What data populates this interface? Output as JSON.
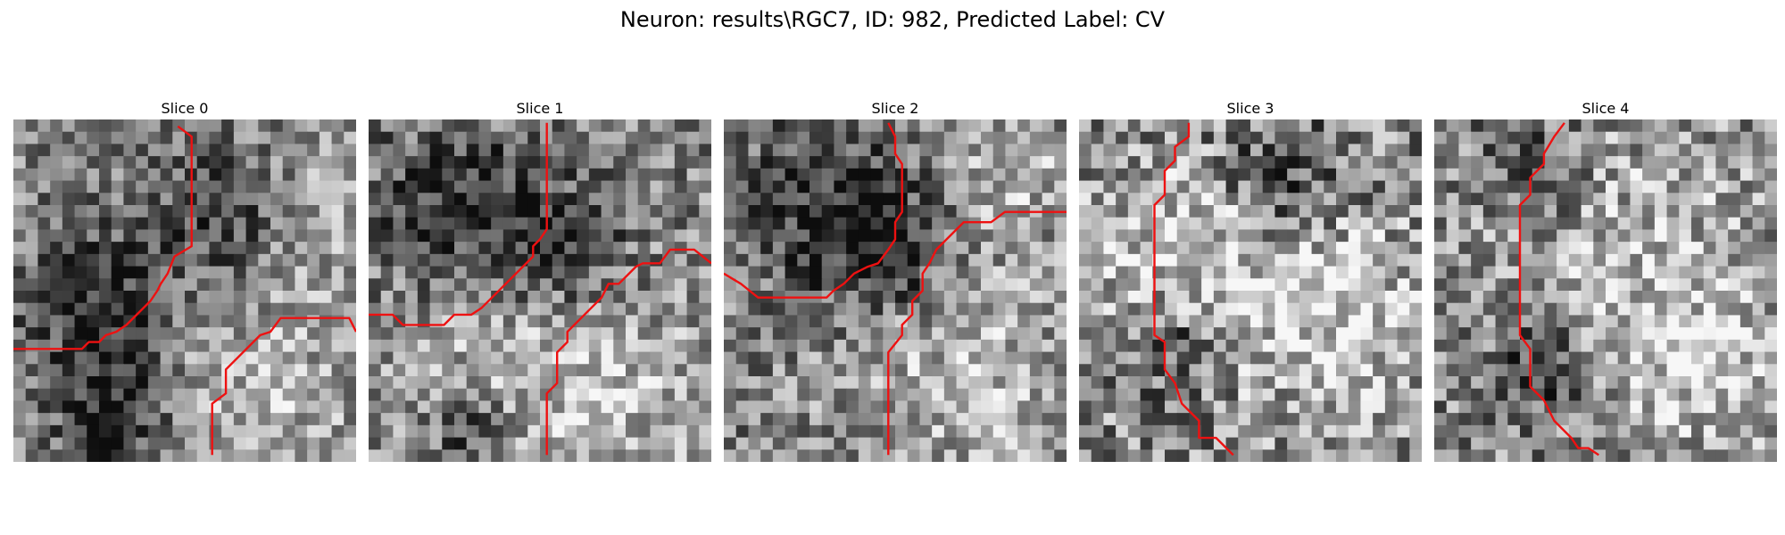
{
  "figure": {
    "title": "Neuron: results\\RGC7, ID: 982, Predicted Label: CV",
    "line_color": "#ee1111"
  },
  "panels": [
    {
      "title": "Slice 0",
      "grid_size": 28,
      "contrast": 0.55,
      "bright_blobs": [
        [
          0.72,
          0.8,
          0.22
        ],
        [
          0.82,
          0.28,
          0.15
        ]
      ],
      "dark_blobs": [
        [
          0.25,
          0.55,
          0.15
        ],
        [
          0.3,
          0.88,
          0.12
        ],
        [
          0.65,
          0.28,
          0.14
        ]
      ],
      "contours": [
        [
          [
            0.48,
            0.02
          ],
          [
            0.52,
            0.05
          ],
          [
            0.52,
            0.37
          ],
          [
            0.47,
            0.4
          ],
          [
            0.45,
            0.45
          ],
          [
            0.43,
            0.48
          ],
          [
            0.42,
            0.5
          ],
          [
            0.4,
            0.53
          ],
          [
            0.37,
            0.56
          ],
          [
            0.33,
            0.6
          ],
          [
            0.3,
            0.62
          ],
          [
            0.27,
            0.63
          ],
          [
            0.25,
            0.65
          ],
          [
            0.22,
            0.65
          ],
          [
            0.2,
            0.67
          ],
          [
            0.0,
            0.67
          ]
        ],
        [
          [
            0.58,
            0.98
          ],
          [
            0.58,
            0.83
          ],
          [
            0.62,
            0.8
          ],
          [
            0.62,
            0.73
          ],
          [
            0.65,
            0.7
          ],
          [
            0.68,
            0.67
          ],
          [
            0.72,
            0.63
          ],
          [
            0.75,
            0.62
          ],
          [
            0.78,
            0.58
          ],
          [
            0.98,
            0.58
          ],
          [
            1.0,
            0.62
          ]
        ]
      ]
    },
    {
      "title": "Slice 1",
      "grid_size": 28,
      "contrast": 0.6,
      "bright_blobs": [
        [
          0.72,
          0.82,
          0.22
        ],
        [
          0.3,
          0.78,
          0.18
        ]
      ],
      "dark_blobs": [
        [
          0.55,
          0.35,
          0.12
        ],
        [
          0.25,
          0.25,
          0.15
        ],
        [
          0.3,
          0.9,
          0.1
        ]
      ],
      "contours": [
        [
          [
            0.52,
            0.01
          ],
          [
            0.52,
            0.32
          ],
          [
            0.5,
            0.35
          ],
          [
            0.48,
            0.37
          ],
          [
            0.48,
            0.4
          ],
          [
            0.45,
            0.43
          ],
          [
            0.4,
            0.48
          ],
          [
            0.33,
            0.55
          ],
          [
            0.3,
            0.57
          ],
          [
            0.25,
            0.57
          ],
          [
            0.22,
            0.6
          ],
          [
            0.1,
            0.6
          ],
          [
            0.07,
            0.57
          ],
          [
            0.0,
            0.57
          ]
        ],
        [
          [
            0.52,
            0.98
          ],
          [
            0.52,
            0.8
          ],
          [
            0.55,
            0.77
          ],
          [
            0.55,
            0.68
          ],
          [
            0.58,
            0.65
          ],
          [
            0.58,
            0.62
          ],
          [
            0.62,
            0.58
          ],
          [
            0.65,
            0.55
          ],
          [
            0.68,
            0.52
          ],
          [
            0.7,
            0.48
          ],
          [
            0.73,
            0.48
          ],
          [
            0.78,
            0.43
          ],
          [
            0.8,
            0.42
          ],
          [
            0.85,
            0.42
          ],
          [
            0.88,
            0.38
          ],
          [
            0.95,
            0.38
          ],
          [
            1.0,
            0.42
          ]
        ]
      ]
    },
    {
      "title": "Slice 2",
      "grid_size": 28,
      "contrast": 0.6,
      "bright_blobs": [
        [
          0.7,
          0.75,
          0.25
        ],
        [
          0.85,
          0.15,
          0.12
        ]
      ],
      "dark_blobs": [
        [
          0.3,
          0.25,
          0.18
        ],
        [
          0.48,
          0.4,
          0.1
        ]
      ],
      "contours": [
        [
          [
            0.48,
            0.01
          ],
          [
            0.5,
            0.05
          ],
          [
            0.5,
            0.1
          ],
          [
            0.52,
            0.13
          ],
          [
            0.52,
            0.27
          ],
          [
            0.5,
            0.3
          ],
          [
            0.5,
            0.35
          ],
          [
            0.48,
            0.38
          ],
          [
            0.45,
            0.42
          ],
          [
            0.42,
            0.43
          ],
          [
            0.38,
            0.45
          ],
          [
            0.35,
            0.48
          ],
          [
            0.32,
            0.5
          ],
          [
            0.3,
            0.52
          ],
          [
            0.1,
            0.52
          ],
          [
            0.05,
            0.48
          ],
          [
            0.0,
            0.45
          ]
        ],
        [
          [
            0.48,
            0.98
          ],
          [
            0.48,
            0.68
          ],
          [
            0.52,
            0.63
          ],
          [
            0.52,
            0.6
          ],
          [
            0.55,
            0.57
          ],
          [
            0.55,
            0.53
          ],
          [
            0.58,
            0.5
          ],
          [
            0.58,
            0.45
          ],
          [
            0.6,
            0.42
          ],
          [
            0.62,
            0.38
          ],
          [
            0.65,
            0.35
          ],
          [
            0.68,
            0.32
          ],
          [
            0.7,
            0.3
          ],
          [
            0.78,
            0.3
          ],
          [
            0.82,
            0.27
          ],
          [
            1.0,
            0.27
          ]
        ]
      ]
    },
    {
      "title": "Slice 3",
      "grid_size": 28,
      "contrast": 0.7,
      "bright_blobs": [
        [
          0.5,
          0.4,
          0.3
        ],
        [
          0.8,
          0.6,
          0.2
        ],
        [
          0.3,
          0.45,
          0.18
        ]
      ],
      "dark_blobs": [
        [
          0.3,
          0.65,
          0.12
        ],
        [
          0.6,
          0.18,
          0.15
        ]
      ],
      "contours": [
        [
          [
            0.32,
            0.01
          ],
          [
            0.32,
            0.05
          ],
          [
            0.28,
            0.08
          ],
          [
            0.28,
            0.12
          ],
          [
            0.25,
            0.15
          ],
          [
            0.25,
            0.22
          ],
          [
            0.22,
            0.25
          ],
          [
            0.22,
            0.63
          ],
          [
            0.25,
            0.65
          ],
          [
            0.25,
            0.73
          ],
          [
            0.28,
            0.77
          ],
          [
            0.3,
            0.83
          ],
          [
            0.35,
            0.88
          ],
          [
            0.35,
            0.93
          ],
          [
            0.4,
            0.93
          ],
          [
            0.45,
            0.98
          ]
        ]
      ]
    },
    {
      "title": "Slice 4",
      "grid_size": 28,
      "contrast": 0.65,
      "bright_blobs": [
        [
          0.55,
          0.4,
          0.3
        ],
        [
          0.8,
          0.75,
          0.2
        ]
      ],
      "dark_blobs": [
        [
          0.32,
          0.72,
          0.1
        ],
        [
          0.3,
          0.15,
          0.1
        ]
      ],
      "contours": [
        [
          [
            0.38,
            0.01
          ],
          [
            0.35,
            0.05
          ],
          [
            0.32,
            0.1
          ],
          [
            0.32,
            0.13
          ],
          [
            0.28,
            0.17
          ],
          [
            0.28,
            0.22
          ],
          [
            0.25,
            0.25
          ],
          [
            0.25,
            0.63
          ],
          [
            0.28,
            0.67
          ],
          [
            0.28,
            0.78
          ],
          [
            0.32,
            0.82
          ],
          [
            0.35,
            0.88
          ],
          [
            0.4,
            0.93
          ],
          [
            0.42,
            0.96
          ],
          [
            0.45,
            0.96
          ],
          [
            0.48,
            0.98
          ]
        ]
      ]
    }
  ]
}
